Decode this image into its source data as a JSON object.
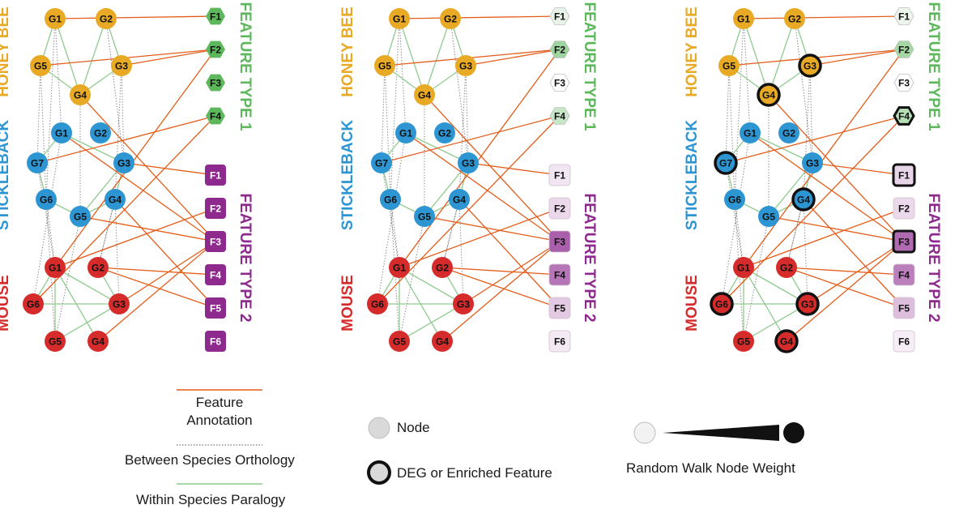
{
  "panels": [
    {
      "id": "panel-1"
    },
    {
      "id": "panel-2"
    },
    {
      "id": "panel-3"
    }
  ],
  "colors": {
    "honeybee": "#E8A924",
    "stickleback": "#2E95D3",
    "mouse": "#D62B2B",
    "feature1": "#5DB85C",
    "feature2": "#8E2A8E",
    "annotation_edge": "#E35D1A",
    "orthology_edge": "#777777",
    "paralogy_edge": "#8FCB8F"
  },
  "species_labels": {
    "honeybee": "HONEY BEE",
    "stickleback": "STICKLEBACK",
    "mouse": "MOUSE"
  },
  "feature_labels": {
    "type1": "FEATURE TYPE 1",
    "type2": "FEATURE TYPE 2"
  },
  "nodes": {
    "honeybee": [
      "G1",
      "G2",
      "G5",
      "G3",
      "G4"
    ],
    "stickleback": [
      "G1",
      "G2",
      "G7",
      "G3",
      "G6",
      "G4",
      "G5"
    ],
    "mouse": [
      "G1",
      "G2",
      "G6",
      "G3",
      "G5",
      "G4"
    ],
    "feature1": [
      "F1",
      "F2",
      "F3",
      "F4"
    ],
    "feature2": [
      "F1",
      "F2",
      "F3",
      "F4",
      "F5",
      "F6"
    ]
  },
  "weights": {
    "panel2": {
      "F1": 0.15,
      "F2": 0.6,
      "F3": 0.0,
      "F4": 0.35,
      "P1": 0.12,
      "P2": 0.18,
      "P3": 0.75,
      "P4": 0.65,
      "P5": 0.25,
      "P6": 0.1
    },
    "panel3": {
      "F1": 0.12,
      "F2": 0.55,
      "F3": 0.0,
      "F4": 0.45,
      "P1": 0.2,
      "P2": 0.18,
      "P3": 0.7,
      "P4": 0.6,
      "P5": 0.3,
      "P6": 0.08
    }
  },
  "enriched_panel3": [
    "hb-G3",
    "hb-G4",
    "st-G7",
    "st-G4",
    "mo-G6",
    "mo-G3",
    "mo-G4",
    "f1-F4",
    "f2-F1",
    "f2-F3"
  ],
  "legend": {
    "feature_annotation": "Feature\nAnnotation",
    "between_species": "Between Species Orthology",
    "within_species": "Within Species Paralogy",
    "node": "Node",
    "deg": "DEG or Enriched Feature",
    "random_walk": "Random Walk Node Weight"
  }
}
